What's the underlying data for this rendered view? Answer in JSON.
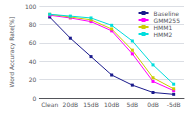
{
  "chart_data": {
    "type": "line",
    "categories": [
      "Clean",
      "20dB",
      "15dB",
      "10dB",
      "5dB",
      "0dB",
      "-5dB"
    ],
    "series": [
      {
        "name": "Baseline",
        "color": "#1A1A8C",
        "values": [
          88,
          65,
          45,
          25,
          14,
          6,
          4
        ]
      },
      {
        "name": "GMM255",
        "color": "#FF00FF",
        "values": [
          90,
          87,
          83,
          73,
          48,
          18,
          8
        ]
      },
      {
        "name": "HMM1",
        "color": "#CCCC00",
        "values": [
          91,
          88,
          85,
          75,
          52,
          22,
          10
        ]
      },
      {
        "name": "HMM2",
        "color": "#00DDDD",
        "values": [
          91,
          89,
          87,
          79,
          62,
          36,
          15
        ]
      }
    ],
    "ylabel": "Word Accuracy Rate[%]",
    "ylim": [
      0,
      100
    ],
    "yticks": [
      0,
      20,
      40,
      60,
      80,
      100
    ],
    "grid": true,
    "legend": "upper right",
    "marker": "square"
  }
}
